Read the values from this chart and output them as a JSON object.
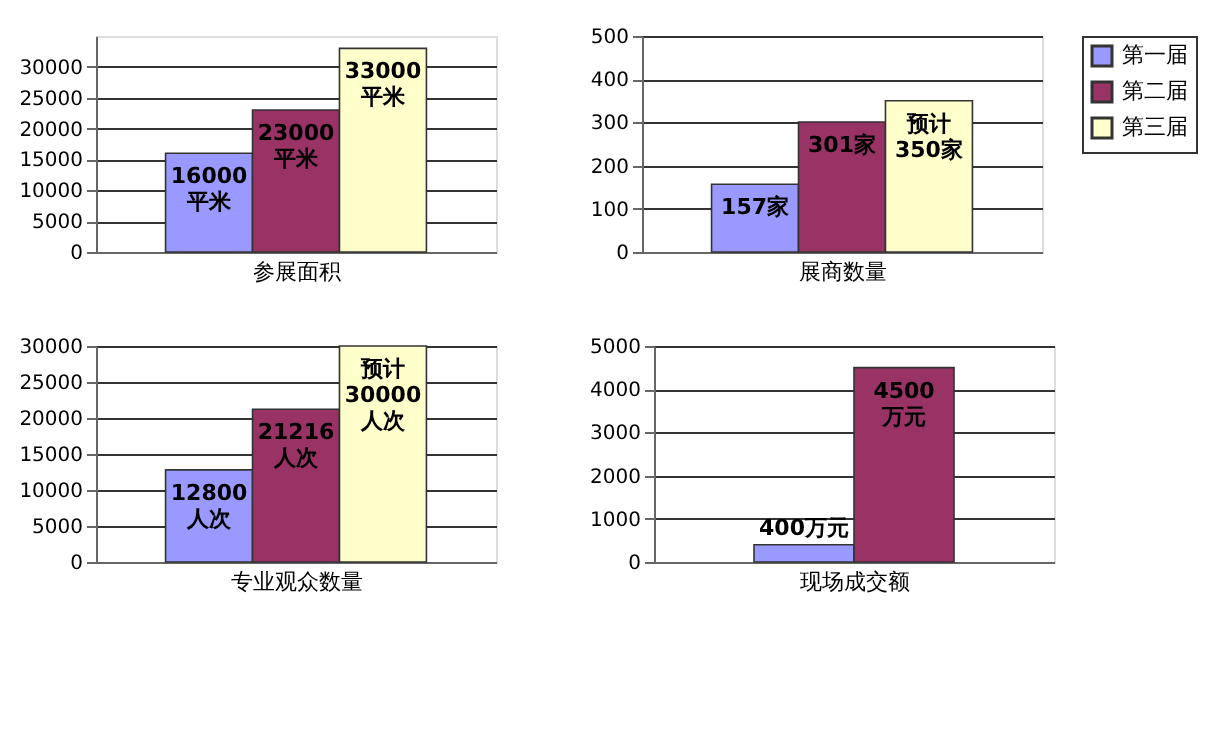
{
  "chart_data": [
    {
      "type": "bar",
      "xlabel": "参展面积",
      "categories": [
        null
      ],
      "ylim": [
        0,
        35000
      ],
      "yticks": [
        0,
        5000,
        10000,
        15000,
        20000,
        25000,
        30000
      ],
      "grid": "y",
      "tick_labels": "y",
      "series": [
        {
          "color": "#9999ff",
          "values": [
            16000
          ],
          "value_labels": [
            "16000\n平米"
          ]
        },
        {
          "color": "#993366",
          "values": [
            23000
          ],
          "value_labels": [
            "23000\n平米"
          ]
        },
        {
          "color": "#ffffcc",
          "values": [
            33000
          ],
          "value_labels": [
            "33000\n平米"
          ]
        }
      ]
    },
    {
      "type": "bar",
      "xlabel": "展商数量",
      "categories": [
        null
      ],
      "ylim": [
        0,
        500
      ],
      "yticks": [
        0,
        100,
        200,
        300,
        400,
        500
      ],
      "grid": "y",
      "legend": "right",
      "tick_labels": "y",
      "series": [
        {
          "name": "第一届",
          "color": "#9999ff",
          "values": [
            157
          ],
          "value_labels": [
            "157家"
          ]
        },
        {
          "name": "第二届",
          "color": "#993366",
          "values": [
            301
          ],
          "value_labels": [
            "301家"
          ]
        },
        {
          "name": "第三届",
          "color": "#ffffcc",
          "values": [
            350
          ],
          "value_labels": [
            "预计\n350家"
          ]
        }
      ]
    },
    {
      "type": "bar",
      "xlabel": "专业观众数量",
      "categories": [
        null
      ],
      "ylim": [
        0,
        30000
      ],
      "yticks": [
        0,
        5000,
        10000,
        15000,
        20000,
        25000,
        30000
      ],
      "grid": "y",
      "tick_labels": "y",
      "series": [
        {
          "color": "#9999ff",
          "values": [
            12800
          ],
          "value_labels": [
            "12800\n人次"
          ]
        },
        {
          "color": "#993366",
          "values": [
            21216
          ],
          "value_labels": [
            "21216\n人次"
          ]
        },
        {
          "color": "#ffffcc",
          "values": [
            30000
          ],
          "value_labels": [
            "预计\n30000\n人次"
          ]
        }
      ]
    },
    {
      "type": "bar",
      "xlabel": "现场成交额",
      "categories": [
        null
      ],
      "ylim": [
        0,
        5000
      ],
      "yticks": [
        0,
        1000,
        2000,
        3000,
        4000,
        5000
      ],
      "grid": "y",
      "tick_labels": "y",
      "series": [
        {
          "color": "#9999ff",
          "values": [
            400
          ],
          "value_labels": [
            "400万元"
          ]
        },
        {
          "color": "#993366",
          "values": [
            4500
          ],
          "value_labels": [
            "4500\n万元"
          ]
        }
      ]
    }
  ]
}
